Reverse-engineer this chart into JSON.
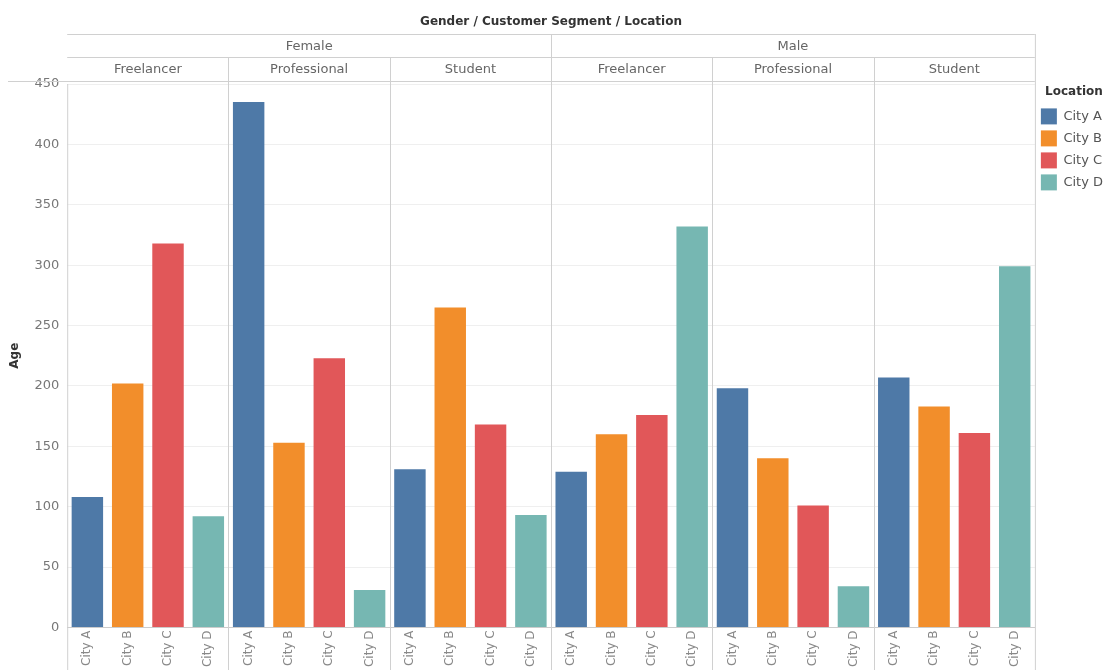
{
  "chart_data": {
    "type": "bar",
    "title": "Gender / Customer Segment / Location",
    "ylabel": "Age",
    "legend_title": "Location",
    "categories": [
      "City A",
      "City B",
      "City C",
      "City D",
      "City A",
      "City B",
      "City C",
      "City D",
      "City A",
      "City B",
      "City C",
      "City D",
      "City A",
      "City B",
      "City C",
      "City D",
      "City A",
      "City B",
      "City C",
      "City D",
      "City A",
      "City B",
      "City C",
      "City D"
    ],
    "series": [
      {
        "name": "City A",
        "color": "#4e79a7",
        "values": [
          108,
          null,
          null,
          null,
          435,
          null,
          null,
          null,
          131,
          null,
          null,
          null,
          129,
          null,
          null,
          null,
          198,
          null,
          null,
          null,
          207,
          null,
          null,
          null
        ]
      },
      {
        "name": "City B",
        "color": "#f28e2b",
        "values": [
          null,
          202,
          null,
          null,
          null,
          153,
          null,
          null,
          null,
          265,
          null,
          null,
          null,
          160,
          null,
          null,
          null,
          140,
          null,
          null,
          null,
          183,
          null,
          null
        ]
      },
      {
        "name": "City C",
        "color": "#e15759",
        "values": [
          null,
          null,
          318,
          null,
          null,
          null,
          223,
          null,
          null,
          null,
          168,
          null,
          null,
          null,
          176,
          null,
          null,
          null,
          101,
          null,
          null,
          null,
          161,
          null
        ]
      },
      {
        "name": "City D",
        "color": "#76b7b2",
        "values": [
          null,
          null,
          null,
          92,
          null,
          null,
          null,
          31,
          null,
          null,
          null,
          93,
          null,
          null,
          null,
          332,
          null,
          null,
          null,
          34,
          null,
          null,
          null,
          299
        ]
      }
    ],
    "annotations": [
      "Female",
      "Male",
      "Freelancer",
      "Professional",
      "Student",
      "Freelancer",
      "Professional",
      "Student"
    ],
    "ylim": [
      0,
      450
    ],
    "yticks": [
      0,
      50,
      100,
      150,
      200,
      250,
      300,
      350,
      400,
      450
    ],
    "grid": "y",
    "legend": "right"
  }
}
